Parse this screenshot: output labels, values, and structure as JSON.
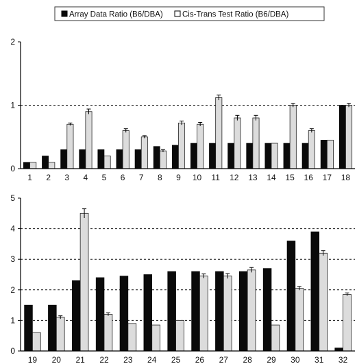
{
  "chart_data": [
    {
      "type": "bar",
      "legend": {
        "placement": "top",
        "entries": [
          "Array Data Ratio (B6/DBA)",
          "Cis-Trans Test Ratio (B6/DBA)"
        ]
      },
      "categories": [
        "1",
        "2",
        "3",
        "4",
        "5",
        "6",
        "7",
        "8",
        "9",
        "10",
        "11",
        "12",
        "13",
        "14",
        "15",
        "16",
        "17",
        "18"
      ],
      "series": [
        {
          "name": "Array Data Ratio (B6/DBA)",
          "color": "#0a0a0a",
          "values": [
            0.1,
            0.2,
            0.3,
            0.3,
            0.3,
            0.3,
            0.3,
            0.35,
            0.37,
            0.4,
            0.4,
            0.4,
            0.4,
            0.4,
            0.4,
            0.4,
            0.45,
            1.0
          ]
        },
        {
          "name": "Cis-Trans Test Ratio (B6/DBA)",
          "color": "#dcdcdc",
          "values": [
            0.1,
            0.1,
            0.7,
            0.9,
            0.2,
            0.6,
            0.5,
            0.28,
            0.72,
            0.7,
            1.12,
            0.8,
            0.8,
            0.4,
            1.0,
            0.6,
            0.45,
            1.0
          ],
          "errors": [
            0,
            0,
            0.02,
            0.04,
            0,
            0.03,
            0.02,
            0.02,
            0.03,
            0.03,
            0.04,
            0.04,
            0.04,
            0,
            0.03,
            0.03,
            0,
            0.03
          ]
        }
      ],
      "yticks": [
        0,
        1,
        2
      ],
      "ylim": [
        0,
        2
      ],
      "reference_lines": [
        1
      ],
      "grid": false
    },
    {
      "type": "bar",
      "categories": [
        "19",
        "20",
        "21",
        "22",
        "23",
        "24",
        "25",
        "26",
        "27",
        "28",
        "29",
        "30",
        "31",
        "32"
      ],
      "series": [
        {
          "name": "Array Data Ratio (B6/DBA)",
          "color": "#0a0a0a",
          "values": [
            1.5,
            1.5,
            2.3,
            2.4,
            2.45,
            2.5,
            2.6,
            2.6,
            2.6,
            2.6,
            2.7,
            3.6,
            3.9,
            0.1
          ]
        },
        {
          "name": "Cis-Trans Test Ratio (B6/DBA)",
          "color": "#dcdcdc",
          "values": [
            0.6,
            1.1,
            4.5,
            1.2,
            0.9,
            0.85,
            1.0,
            2.45,
            2.45,
            2.65,
            0.85,
            2.05,
            3.2,
            1.85
          ],
          "errors": [
            0,
            0.05,
            0.15,
            0.05,
            0,
            0,
            0,
            0.07,
            0.08,
            0.08,
            0,
            0.06,
            0.08,
            0.05
          ]
        }
      ],
      "yticks": [
        0,
        1,
        2,
        3,
        4,
        5
      ],
      "ylim": [
        0,
        5
      ],
      "reference_lines": [
        1,
        2,
        3,
        4
      ],
      "grid": false
    }
  ]
}
